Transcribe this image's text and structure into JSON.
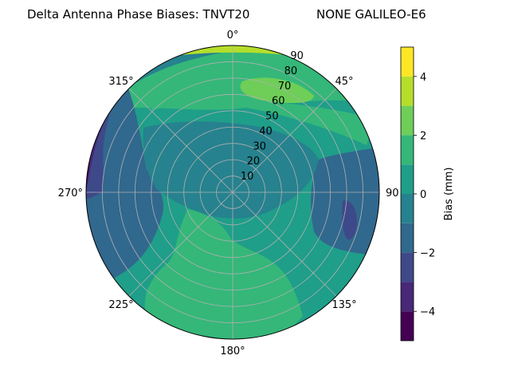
{
  "chart_data": {
    "type": "polar-contour",
    "title": "Delta Antenna Phase Biases: TNVT20",
    "subtitle": "NONE GALILEO-E6",
    "angular_ticks": [
      "0°",
      "45°",
      "90",
      "135°",
      "180°",
      "225°",
      "270°",
      "315°"
    ],
    "radial_ticks": [
      "10",
      "20",
      "30",
      "40",
      "50",
      "60",
      "70",
      "80",
      "90"
    ],
    "radial_range": [
      0,
      90
    ],
    "grid": true,
    "colorbar": {
      "label": "Bias (mm)",
      "range": [
        -5,
        5
      ],
      "levels": [
        -5,
        -4,
        -3,
        -2,
        -1,
        0,
        1,
        2,
        3,
        4,
        5
      ],
      "tick_labels": [
        "−4",
        "−2",
        "0",
        "2",
        "4"
      ],
      "tick_values": [
        -4,
        -2,
        0,
        2,
        4
      ],
      "colors": [
        "#440154",
        "#482878",
        "#3e4989",
        "#31688e",
        "#26828e",
        "#1f9e89",
        "#35b779",
        "#6ece58",
        "#b5de2b",
        "#fde725"
      ]
    },
    "regions": [
      {
        "desc": "background",
        "value": 0.5
      },
      {
        "desc": "north band upper",
        "value": 1.5
      },
      {
        "desc": "north-west band",
        "value": -0.5
      },
      {
        "desc": "high-elevation ring",
        "value": 1.5
      },
      {
        "desc": "north-east patch",
        "value": 2.5
      },
      {
        "desc": "north rim",
        "value": 3.5
      },
      {
        "desc": "north rim edge",
        "value": 4.5
      },
      {
        "desc": "west band",
        "value": -1.5
      },
      {
        "desc": "west core",
        "value": -2.5
      },
      {
        "desc": "west rim",
        "value": -3.5
      },
      {
        "desc": "west rim edge",
        "value": -4.5
      },
      {
        "desc": "east band",
        "value": -1.5
      },
      {
        "desc": "east core",
        "value": -2.5
      },
      {
        "desc": "south lobe",
        "value": 1.5
      },
      {
        "desc": "centre zone",
        "value": -0.5
      }
    ]
  }
}
